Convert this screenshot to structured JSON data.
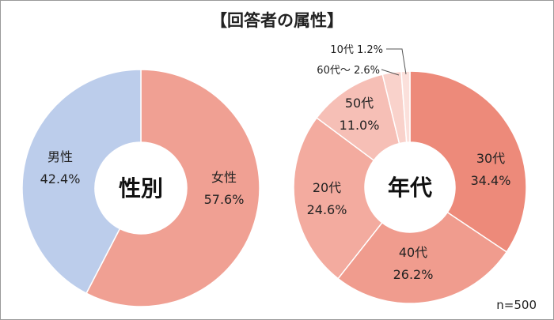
{
  "title": "【回答者の属性】",
  "sample_size": "n=500",
  "colors": {
    "male": "#bccdeb",
    "female": "#f0a093",
    "age_30": "#ed8a7a",
    "age_40": "#f09c8e",
    "age_20": "#f3ab9f",
    "age_50": "#f6bfb6",
    "age_60": "#f9d2cb",
    "age_10": "#fbe0db"
  },
  "chart_data": [
    {
      "type": "pie",
      "center_label": "性別",
      "slices": [
        {
          "label": "女性",
          "value": 57.6,
          "display": "57.6%",
          "color_key": "female"
        },
        {
          "label": "男性",
          "value": 42.4,
          "display": "42.4%",
          "color_key": "male"
        }
      ]
    },
    {
      "type": "pie",
      "center_label": "年代",
      "slices": [
        {
          "label": "30代",
          "value": 34.4,
          "display": "34.4%",
          "color_key": "age_30"
        },
        {
          "label": "40代",
          "value": 26.2,
          "display": "26.2%",
          "color_key": "age_40"
        },
        {
          "label": "20代",
          "value": 24.6,
          "display": "24.6%",
          "color_key": "age_20"
        },
        {
          "label": "50代",
          "value": 11.0,
          "display": "11.0%",
          "color_key": "age_50"
        },
        {
          "label": "60代～",
          "value": 2.6,
          "display": "2.6%",
          "color_key": "age_60"
        },
        {
          "label": "10代",
          "value": 1.2,
          "display": "1.2%",
          "color_key": "age_10"
        }
      ]
    }
  ]
}
